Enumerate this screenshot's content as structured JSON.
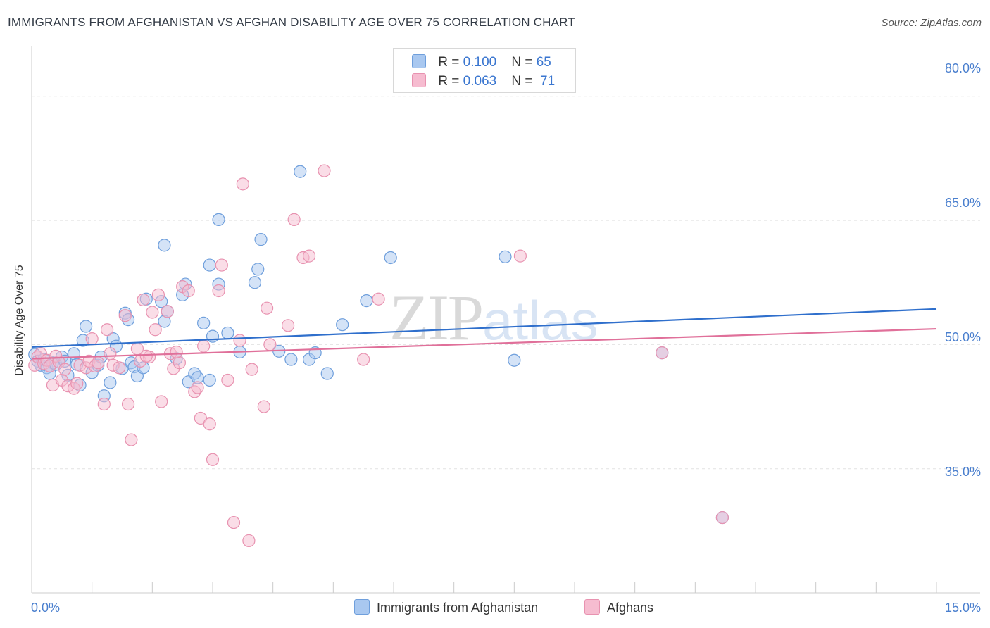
{
  "title": "IMMIGRANTS FROM AFGHANISTAN VS AFGHAN DISABILITY AGE OVER 75 CORRELATION CHART",
  "source": "Source: ZipAtlas.com",
  "watermark": {
    "zip": "ZIP",
    "atlas": "atlas"
  },
  "legend": {
    "rows": [
      {
        "r_label": "R =",
        "r_value": "0.100",
        "n_label": "N =",
        "n_value": "65"
      },
      {
        "r_label": "R =",
        "r_value": "0.063",
        "n_label": "N =",
        "n_value": "71"
      }
    ]
  },
  "colors": {
    "blue": "#a9c8f0",
    "blue_stroke": "#6f9fdc",
    "blue_line": "#2f6fcc",
    "pink": "#f6bcd0",
    "pink_stroke": "#e892b0",
    "pink_line": "#e0709a"
  },
  "chart_data": {
    "type": "scatter",
    "title": "IMMIGRANTS FROM AFGHANISTAN VS AFGHAN DISABILITY AGE OVER 75 CORRELATION CHART",
    "xlabel": "",
    "ylabel": "Disability Age Over 75",
    "xlim": [
      0,
      15
    ],
    "ylim": [
      20,
      85
    ],
    "x_tick_labels": [
      "0.0%",
      "15.0%"
    ],
    "y_ticks": [
      35,
      50,
      65,
      80
    ],
    "y_tick_labels": [
      "35.0%",
      "50.0%",
      "65.0%",
      "80.0%"
    ],
    "grid": true,
    "series": [
      {
        "name": "Immigrants from Afghanistan",
        "color": "blue",
        "trend": {
          "x": [
            0,
            15
          ],
          "y": [
            49.7,
            54.3
          ]
        },
        "points": [
          [
            0.05,
            48.8
          ],
          [
            0.1,
            48.0
          ],
          [
            0.15,
            47.5
          ],
          [
            0.2,
            48.2
          ],
          [
            0.25,
            47.2
          ],
          [
            0.3,
            46.5
          ],
          [
            0.35,
            47.8
          ],
          [
            0.4,
            47.6
          ],
          [
            0.5,
            48.5
          ],
          [
            0.55,
            48.0
          ],
          [
            0.6,
            46.3
          ],
          [
            0.7,
            48.9
          ],
          [
            0.75,
            47.6
          ],
          [
            0.8,
            45.1
          ],
          [
            0.9,
            52.2
          ],
          [
            0.85,
            50.5
          ],
          [
            1.0,
            46.6
          ],
          [
            1.1,
            47.5
          ],
          [
            1.15,
            48.5
          ],
          [
            1.2,
            43.8
          ],
          [
            1.3,
            45.4
          ],
          [
            1.35,
            50.7
          ],
          [
            1.4,
            49.8
          ],
          [
            1.5,
            47.1
          ],
          [
            1.55,
            53.8
          ],
          [
            1.6,
            53.0
          ],
          [
            1.65,
            47.8
          ],
          [
            1.7,
            47.3
          ],
          [
            1.75,
            46.2
          ],
          [
            1.85,
            47.2
          ],
          [
            1.9,
            55.5
          ],
          [
            2.15,
            55.2
          ],
          [
            2.2,
            52.8
          ],
          [
            2.25,
            54.0
          ],
          [
            2.2,
            62.0
          ],
          [
            2.4,
            48.3
          ],
          [
            2.5,
            56.0
          ],
          [
            2.55,
            57.3
          ],
          [
            2.6,
            45.5
          ],
          [
            2.7,
            46.5
          ],
          [
            2.75,
            46.0
          ],
          [
            2.85,
            52.6
          ],
          [
            2.95,
            45.7
          ],
          [
            2.95,
            59.6
          ],
          [
            3.1,
            57.3
          ],
          [
            3.1,
            65.1
          ],
          [
            3.25,
            51.4
          ],
          [
            3.45,
            49.1
          ],
          [
            3.7,
            57.5
          ],
          [
            3.75,
            59.1
          ],
          [
            3.8,
            62.7
          ],
          [
            4.1,
            49.2
          ],
          [
            4.3,
            48.2
          ],
          [
            4.45,
            70.9
          ],
          [
            4.6,
            48.2
          ],
          [
            4.9,
            46.5
          ],
          [
            5.15,
            52.4
          ],
          [
            5.55,
            55.3
          ],
          [
            5.95,
            60.5
          ],
          [
            7.85,
            60.6
          ],
          [
            8.0,
            48.1
          ],
          [
            10.45,
            49.0
          ],
          [
            11.45,
            29.1
          ],
          [
            4.7,
            49.0
          ],
          [
            3.0,
            51.0
          ]
        ]
      },
      {
        "name": "Afghans",
        "color": "pink",
        "trend": {
          "x": [
            0,
            15
          ],
          "y": [
            48.3,
            51.9
          ]
        },
        "points": [
          [
            0.05,
            47.5
          ],
          [
            0.1,
            48.5
          ],
          [
            0.15,
            48.9
          ],
          [
            0.2,
            47.7
          ],
          [
            0.25,
            48.1
          ],
          [
            0.3,
            47.4
          ],
          [
            0.35,
            45.1
          ],
          [
            0.4,
            48.6
          ],
          [
            0.45,
            47.9
          ],
          [
            0.5,
            45.7
          ],
          [
            0.55,
            47.0
          ],
          [
            0.6,
            45.0
          ],
          [
            0.7,
            44.7
          ],
          [
            0.75,
            45.3
          ],
          [
            0.8,
            47.5
          ],
          [
            0.9,
            47.2
          ],
          [
            0.95,
            48.0
          ],
          [
            1.0,
            50.7
          ],
          [
            1.05,
            47.4
          ],
          [
            1.1,
            47.8
          ],
          [
            1.2,
            42.8
          ],
          [
            1.25,
            51.8
          ],
          [
            1.3,
            48.9
          ],
          [
            1.35,
            47.5
          ],
          [
            1.45,
            47.2
          ],
          [
            1.55,
            53.5
          ],
          [
            1.6,
            42.8
          ],
          [
            1.65,
            38.5
          ],
          [
            1.75,
            49.5
          ],
          [
            1.8,
            48.0
          ],
          [
            1.85,
            55.4
          ],
          [
            1.95,
            48.5
          ],
          [
            2.0,
            53.9
          ],
          [
            2.05,
            51.8
          ],
          [
            2.1,
            56.0
          ],
          [
            2.15,
            43.1
          ],
          [
            2.25,
            54.0
          ],
          [
            2.3,
            48.9
          ],
          [
            2.35,
            47.1
          ],
          [
            2.45,
            47.8
          ],
          [
            2.5,
            57.0
          ],
          [
            2.6,
            56.5
          ],
          [
            2.7,
            44.3
          ],
          [
            2.75,
            44.8
          ],
          [
            2.8,
            41.1
          ],
          [
            2.85,
            49.8
          ],
          [
            2.95,
            40.4
          ],
          [
            3.0,
            36.1
          ],
          [
            3.1,
            56.5
          ],
          [
            3.15,
            59.6
          ],
          [
            3.25,
            45.7
          ],
          [
            3.35,
            28.5
          ],
          [
            3.45,
            50.5
          ],
          [
            3.5,
            69.4
          ],
          [
            3.6,
            26.3
          ],
          [
            3.65,
            47.0
          ],
          [
            3.85,
            42.5
          ],
          [
            3.9,
            54.4
          ],
          [
            3.95,
            50.0
          ],
          [
            4.25,
            52.3
          ],
          [
            4.35,
            65.1
          ],
          [
            4.5,
            60.5
          ],
          [
            4.6,
            60.7
          ],
          [
            4.85,
            71.0
          ],
          [
            5.5,
            48.2
          ],
          [
            5.75,
            55.5
          ],
          [
            8.1,
            60.7
          ],
          [
            10.45,
            49.0
          ],
          [
            11.45,
            29.1
          ],
          [
            1.9,
            48.6
          ],
          [
            2.4,
            49.1
          ]
        ]
      }
    ]
  },
  "bottom_legend": [
    {
      "label": "Immigrants from Afghanistan"
    },
    {
      "label": "Afghans"
    }
  ]
}
